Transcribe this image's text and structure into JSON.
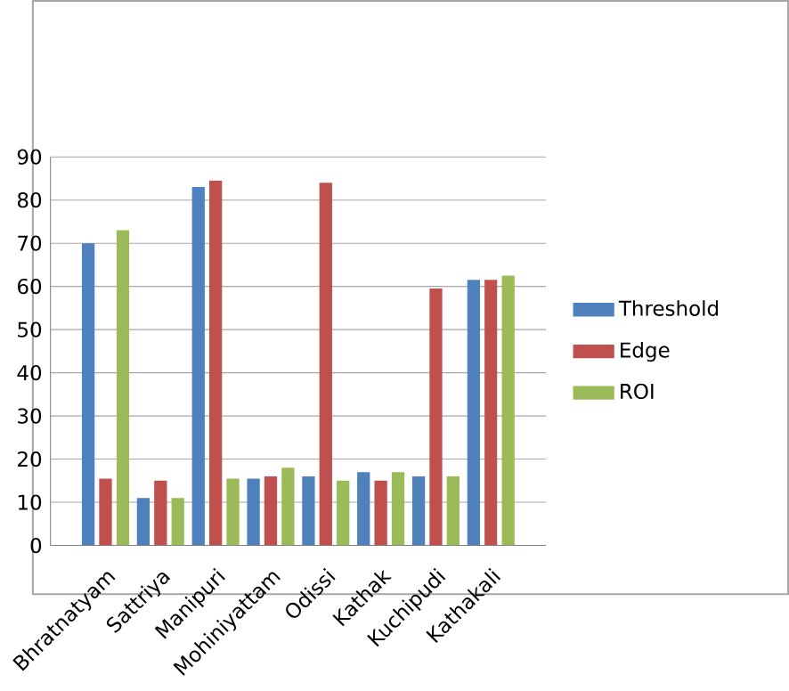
{
  "chart_data": {
    "type": "bar",
    "categories": [
      "Bhratnatyam",
      "Sattriya",
      "Manipuri",
      "Mohiniyattam",
      "Odissi",
      "Kathak",
      "Kuchipudi",
      "Kathakali"
    ],
    "series": [
      {
        "name": "Threshold",
        "color": "#4f81bd",
        "values": [
          70,
          11,
          83,
          15.5,
          16,
          17,
          16,
          61.5
        ]
      },
      {
        "name": "Edge",
        "color": "#c0504d",
        "values": [
          15.5,
          15,
          84.5,
          16,
          84,
          15,
          59.5,
          61.5
        ]
      },
      {
        "name": "ROI",
        "color": "#9bbb59",
        "values": [
          73,
          11,
          15.5,
          18,
          15,
          17,
          16,
          62.5
        ]
      }
    ],
    "ylim": [
      0,
      90
    ],
    "yticks": [
      0,
      10,
      20,
      30,
      40,
      50,
      60,
      70,
      80,
      90
    ],
    "grid": "y",
    "legend": "right"
  }
}
